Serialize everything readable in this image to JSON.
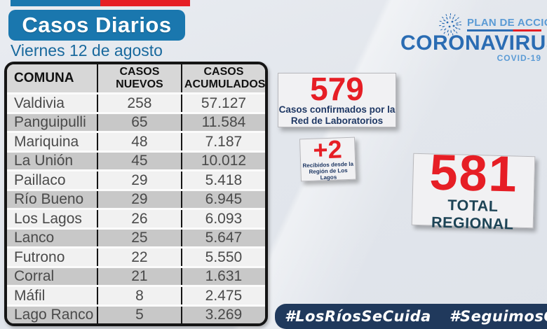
{
  "colors": {
    "header_blue": "#1a77ae",
    "accent_red": "#e61e25",
    "logo_blue": "#2a6cb3",
    "caption_navy": "#1f3864",
    "footer_navy": "#20395c"
  },
  "header": {
    "title": "Casos Diarios",
    "date": "Viernes 12 de agosto"
  },
  "logo": {
    "plan": "PLAN DE ACCIÓN",
    "brand": "CORONAVIRUS",
    "sub": "COVID-19"
  },
  "table": {
    "columns": [
      "COMUNA",
      "CASOS NUEVOS",
      "CASOS ACUMULADOS"
    ],
    "rows": [
      [
        "Valdivia",
        "258",
        "57.127"
      ],
      [
        "Panguipulli",
        "65",
        "11.584"
      ],
      [
        "Mariquina",
        "48",
        "7.187"
      ],
      [
        "La Unión",
        "45",
        "10.012"
      ],
      [
        "Paillaco",
        "29",
        "5.418"
      ],
      [
        "Río Bueno",
        "29",
        "6.945"
      ],
      [
        "Los Lagos",
        "26",
        "6.093"
      ],
      [
        "Lanco",
        "25",
        "5.647"
      ],
      [
        "Futrono",
        "22",
        "5.550"
      ],
      [
        "Corral",
        "21",
        "1.631"
      ],
      [
        "Máfil",
        "8",
        "2.475"
      ],
      [
        "Lago Ranco",
        "5",
        "3.269"
      ]
    ]
  },
  "chart_data": {
    "type": "table",
    "title": "Casos Diarios - Viernes 12 de agosto",
    "categories": [
      "Valdivia",
      "Panguipulli",
      "Mariquina",
      "La Unión",
      "Paillaco",
      "Río Bueno",
      "Los Lagos",
      "Lanco",
      "Futrono",
      "Corral",
      "Máfil",
      "Lago Ranco"
    ],
    "series": [
      {
        "name": "CASOS NUEVOS",
        "values": [
          258,
          65,
          48,
          45,
          29,
          29,
          26,
          25,
          22,
          21,
          8,
          5
        ]
      },
      {
        "name": "CASOS ACUMULADOS",
        "values": [
          57127,
          11584,
          7187,
          10012,
          5418,
          6945,
          6093,
          5647,
          5550,
          1631,
          2475,
          3269
        ]
      }
    ]
  },
  "stats": {
    "lab": {
      "value": "579",
      "caption_line1": "Casos confirmados  por la",
      "caption_line2": "Red de Laboratorios"
    },
    "received": {
      "value": "+2",
      "caption_line1": "Recibidos  desde la",
      "caption_line2": "Región de Los Lagos"
    },
    "total": {
      "value": "581",
      "label": "TOTAL REGIONAL"
    }
  },
  "footer": {
    "hashtag1": "#LosRíosSeCuida",
    "hashtag2": "#SeguimosCuidándonos"
  }
}
